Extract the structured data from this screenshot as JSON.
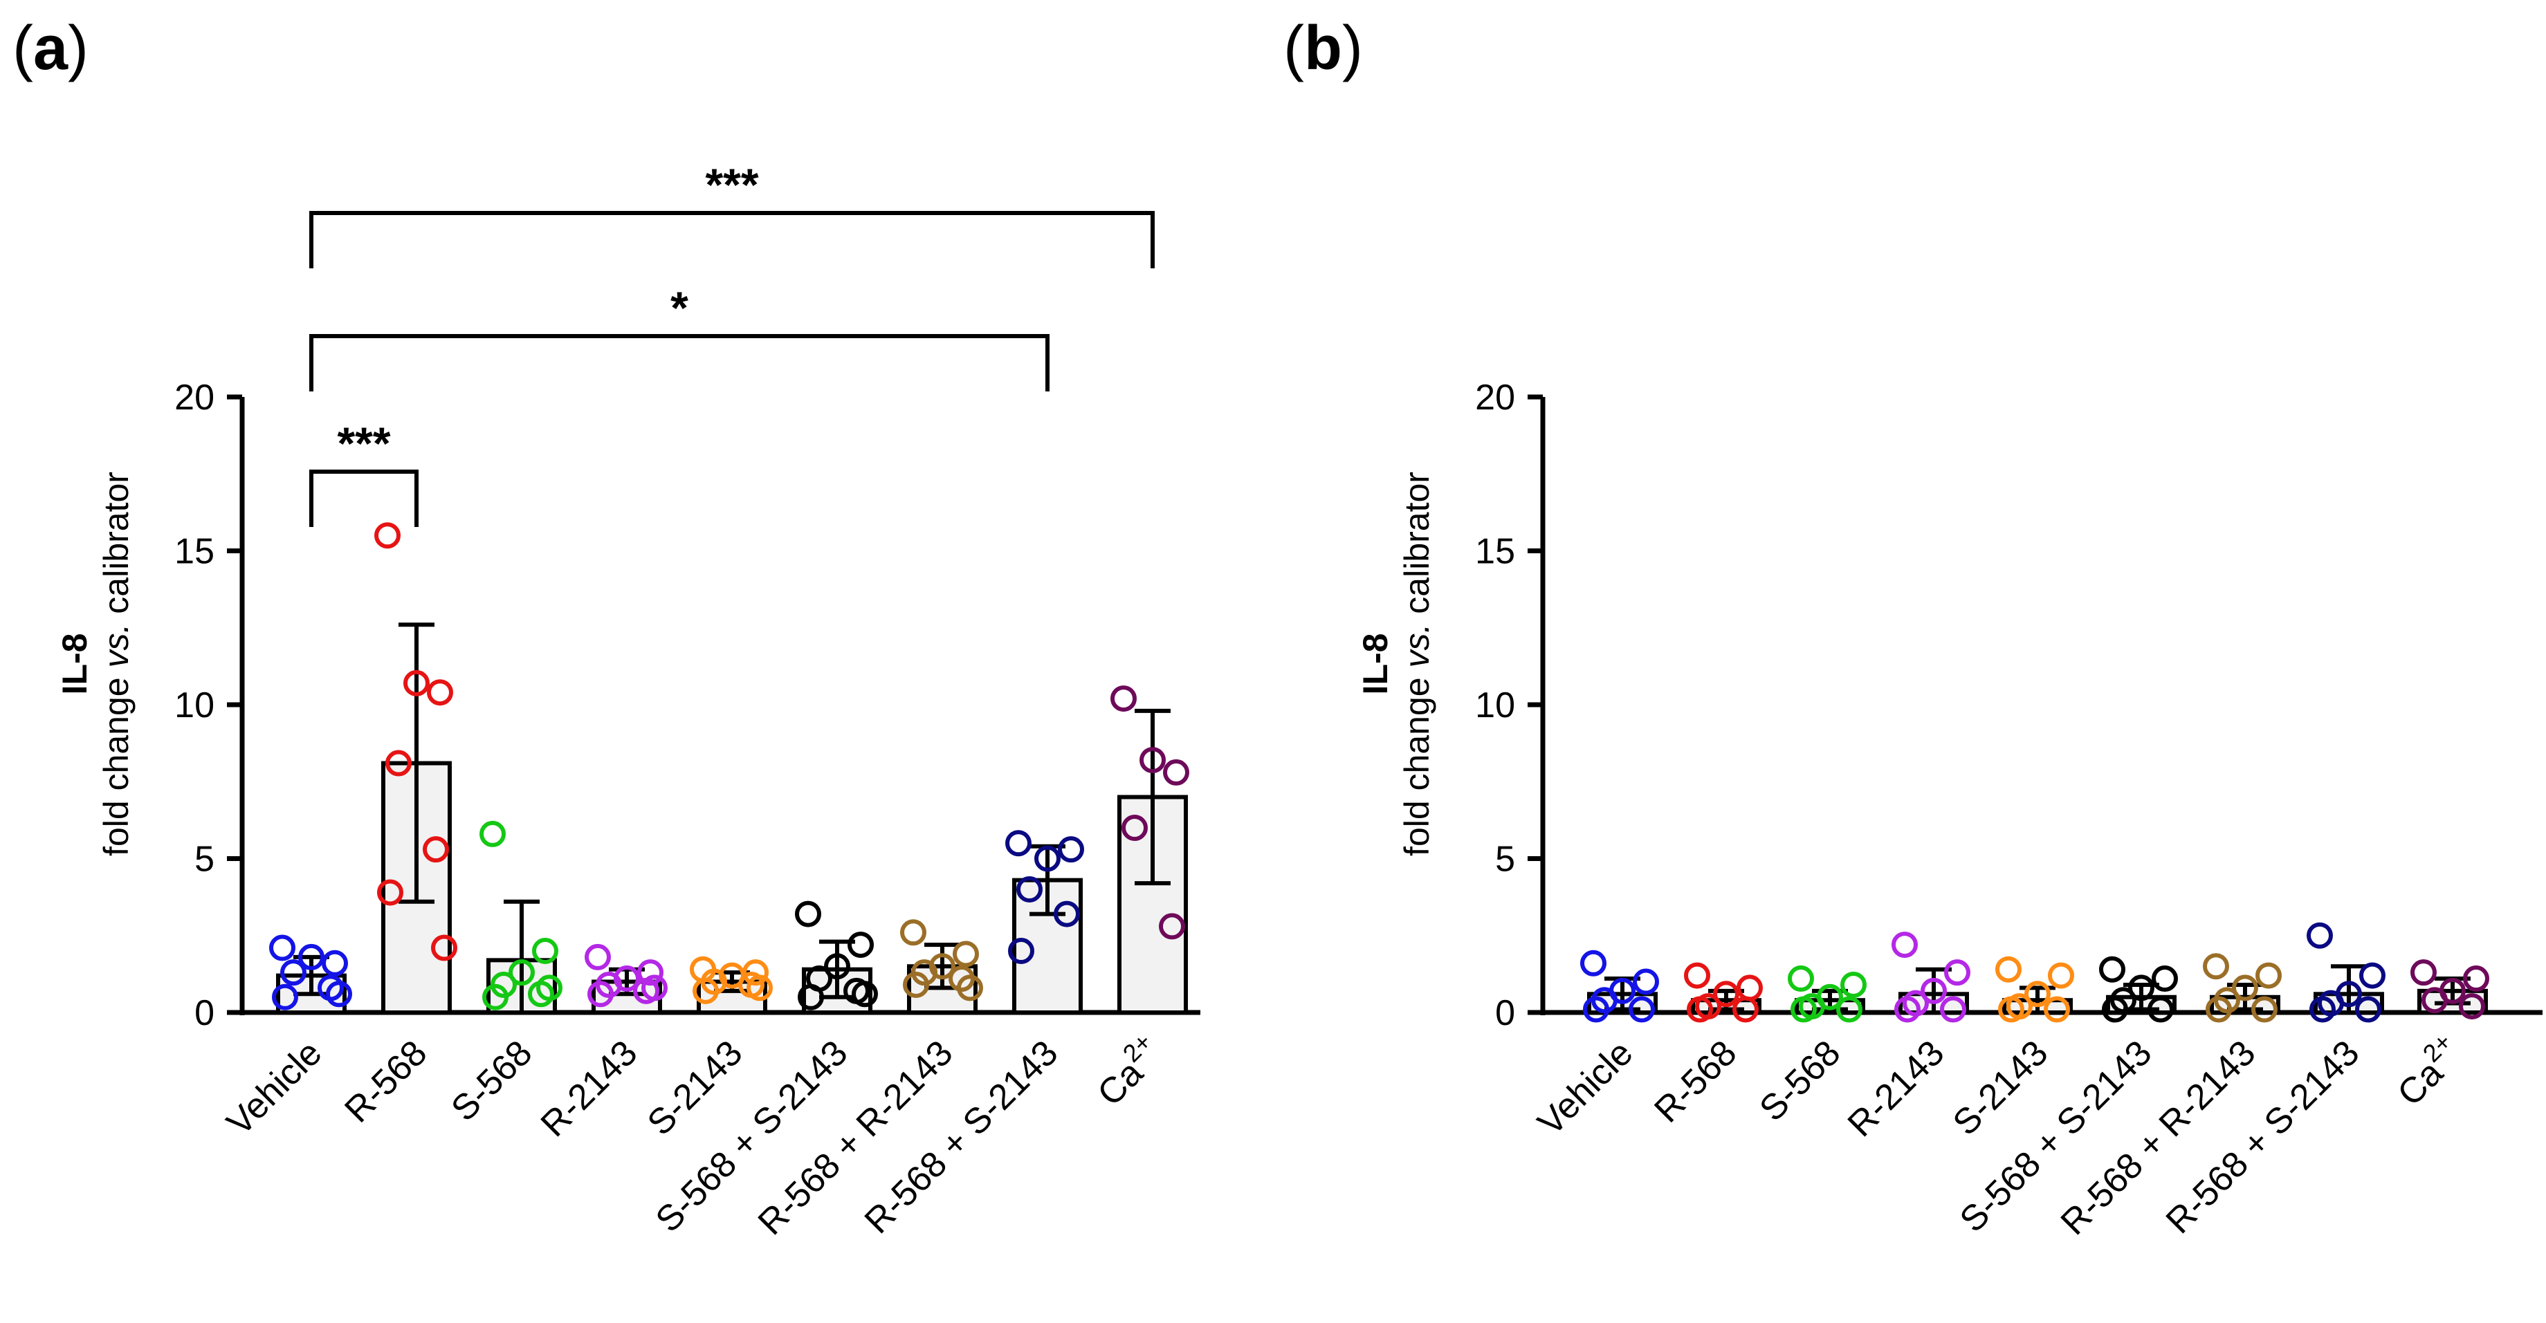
{
  "panels": [
    {
      "label_open": "(",
      "label_letter": "a",
      "label_close": ")"
    },
    {
      "label_open": "(",
      "label_letter": "b",
      "label_close": ")"
    }
  ],
  "y_axis": {
    "label_bold": "IL-8",
    "label_part1": "fold change ",
    "label_italic": "vs.",
    "label_part2": " calibrator"
  },
  "chart_data": [
    {
      "type": "bar",
      "title": "",
      "ylim": [
        0,
        20
      ],
      "yticks": [
        0,
        5,
        10,
        15,
        20
      ],
      "categories": [
        "Vehicle",
        "R-568",
        "S-568",
        "R-2143",
        "S-2143",
        "S-568 + S-2143",
        "R-568 + R-2143",
        "R-568 + S-2143",
        "Ca2+"
      ],
      "colors": [
        "#1414e6",
        "#e61414",
        "#14c814",
        "#b428e6",
        "#ff8c14",
        "#000000",
        "#9b6e28",
        "#0a0a82",
        "#6e0a5a"
      ],
      "values": [
        1.2,
        8.1,
        1.7,
        1.0,
        1.0,
        1.4,
        1.5,
        4.3,
        7.0
      ],
      "sd": [
        0.6,
        4.5,
        1.9,
        0.4,
        0.3,
        0.9,
        0.7,
        1.1,
        2.8
      ],
      "points": [
        [
          2.1,
          1.6,
          1.8,
          1.3,
          0.8,
          0.5,
          0.6
        ],
        [
          15.5,
          10.4,
          10.7,
          8.1,
          5.3,
          3.9,
          2.1
        ],
        [
          5.8,
          2.0,
          1.3,
          0.9,
          0.6,
          0.5,
          0.8
        ],
        [
          1.8,
          1.3,
          1.1,
          0.9,
          0.7,
          0.6,
          0.8
        ],
        [
          1.4,
          1.3,
          1.2,
          1.0,
          0.9,
          0.7,
          0.8
        ],
        [
          3.2,
          2.2,
          1.5,
          1.1,
          0.7,
          0.5,
          0.6
        ],
        [
          2.6,
          1.9,
          1.5,
          1.3,
          1.1,
          0.9,
          0.8
        ],
        [
          5.5,
          5.3,
          5.0,
          4.0,
          3.2,
          2.0
        ],
        [
          10.2,
          7.8,
          8.2,
          6.0,
          2.8
        ]
      ],
      "significance": [
        {
          "from": 0,
          "to": 1,
          "label": "***",
          "level": 1
        },
        {
          "from": 0,
          "to": 7,
          "label": "*",
          "level": 2
        },
        {
          "from": 0,
          "to": 8,
          "label": "***",
          "level": 3
        }
      ]
    },
    {
      "type": "bar",
      "title": "",
      "ylim": [
        0,
        20
      ],
      "yticks": [
        0,
        5,
        10,
        15,
        20
      ],
      "categories": [
        "Vehicle",
        "R-568",
        "S-568",
        "R-2143",
        "S-2143",
        "S-568 + S-2143",
        "R-568 + R-2143",
        "R-568 + S-2143",
        "Ca2+"
      ],
      "colors": [
        "#1414e6",
        "#e61414",
        "#14c814",
        "#b428e6",
        "#ff8c14",
        "#000000",
        "#9b6e28",
        "#0a0a82",
        "#6e0a5a"
      ],
      "values": [
        0.6,
        0.4,
        0.4,
        0.6,
        0.4,
        0.5,
        0.5,
        0.6,
        0.7
      ],
      "sd": [
        0.5,
        0.3,
        0.3,
        0.8,
        0.4,
        0.4,
        0.4,
        0.9,
        0.4
      ],
      "points": [
        [
          1.6,
          1.0,
          0.7,
          0.4,
          0.1,
          0.1
        ],
        [
          1.2,
          0.8,
          0.6,
          0.2,
          0.1,
          0.1
        ],
        [
          1.1,
          0.9,
          0.5,
          0.2,
          0.1,
          0.1
        ],
        [
          2.2,
          1.3,
          0.7,
          0.3,
          0.1,
          0.1
        ],
        [
          1.4,
          1.2,
          0.6,
          0.2,
          0.1,
          0.1
        ],
        [
          1.4,
          1.1,
          0.8,
          0.4,
          0.1,
          0.1
        ],
        [
          1.5,
          1.2,
          0.8,
          0.4,
          0.1,
          0.1
        ],
        [
          2.5,
          1.2,
          0.6,
          0.3,
          0.1,
          0.1
        ],
        [
          1.3,
          1.1,
          0.7,
          0.4,
          0.2
        ]
      ],
      "significance": []
    }
  ]
}
